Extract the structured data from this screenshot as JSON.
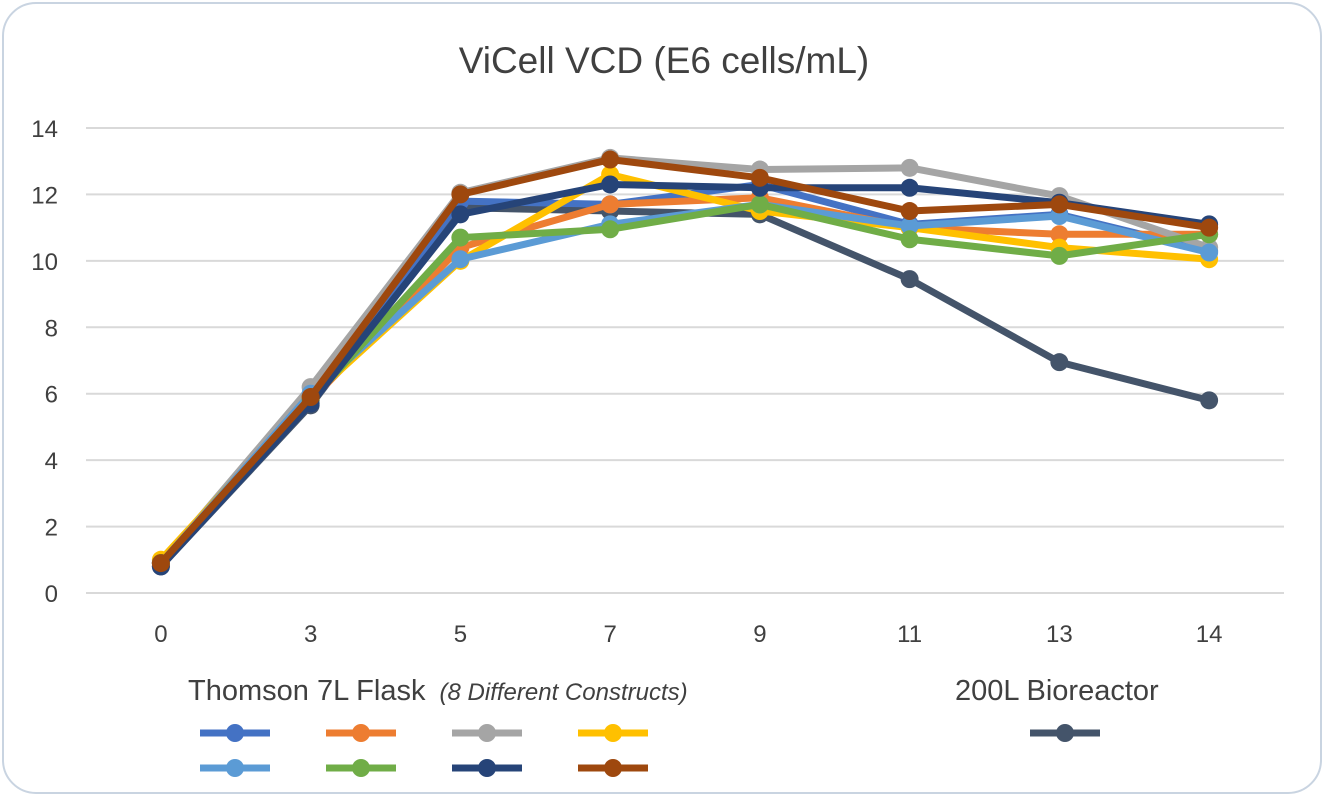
{
  "chart_data": {
    "type": "line",
    "title": "ViCell VCD (E6 cells/mL)",
    "xlabel": "",
    "ylabel": "",
    "categories": [
      "0",
      "3",
      "5",
      "7",
      "9",
      "11",
      "13",
      "14"
    ],
    "ylim": [
      0,
      14
    ],
    "yticks": [
      0,
      2,
      4,
      6,
      8,
      10,
      12,
      14
    ],
    "grid": true,
    "legend_groups": [
      {
        "label": "Thomson 7L Flask",
        "note": "(8 Different Constructs)"
      },
      {
        "label": "200L Bioreactor"
      }
    ],
    "legend_placement": "bottom",
    "series": [
      {
        "group": 0,
        "color": "#4472C4",
        "values": [
          0.9,
          5.8,
          11.8,
          11.7,
          12.3,
          11.1,
          11.4,
          10.3
        ]
      },
      {
        "group": 0,
        "color": "#ED7D31",
        "values": [
          0.9,
          5.8,
          10.4,
          11.7,
          11.9,
          11.0,
          10.8,
          10.8
        ]
      },
      {
        "group": 0,
        "color": "#A5A5A5",
        "values": [
          0.9,
          6.2,
          12.05,
          13.1,
          12.75,
          12.8,
          11.95,
          10.4
        ]
      },
      {
        "group": 0,
        "color": "#FFC000",
        "values": [
          1.0,
          5.9,
          10.0,
          12.6,
          11.5,
          11.0,
          10.4,
          10.05
        ]
      },
      {
        "group": 0,
        "color": "#5B9BD5",
        "values": [
          0.9,
          6.0,
          10.05,
          11.1,
          11.7,
          11.05,
          11.35,
          10.25
        ]
      },
      {
        "group": 0,
        "color": "#70AD47",
        "values": [
          0.9,
          5.8,
          10.7,
          10.95,
          11.7,
          10.65,
          10.15,
          10.8
        ]
      },
      {
        "group": 0,
        "color": "#264478",
        "values": [
          0.8,
          5.7,
          11.4,
          12.3,
          12.2,
          12.2,
          11.75,
          11.1
        ]
      },
      {
        "group": 0,
        "color": "#9E480E",
        "values": [
          0.9,
          5.9,
          12.0,
          13.05,
          12.5,
          11.5,
          11.7,
          11.0
        ]
      },
      {
        "group": 1,
        "color": "#44546A",
        "values": [
          0.8,
          5.65,
          11.6,
          11.5,
          11.4,
          9.45,
          6.95,
          5.8
        ]
      }
    ]
  }
}
